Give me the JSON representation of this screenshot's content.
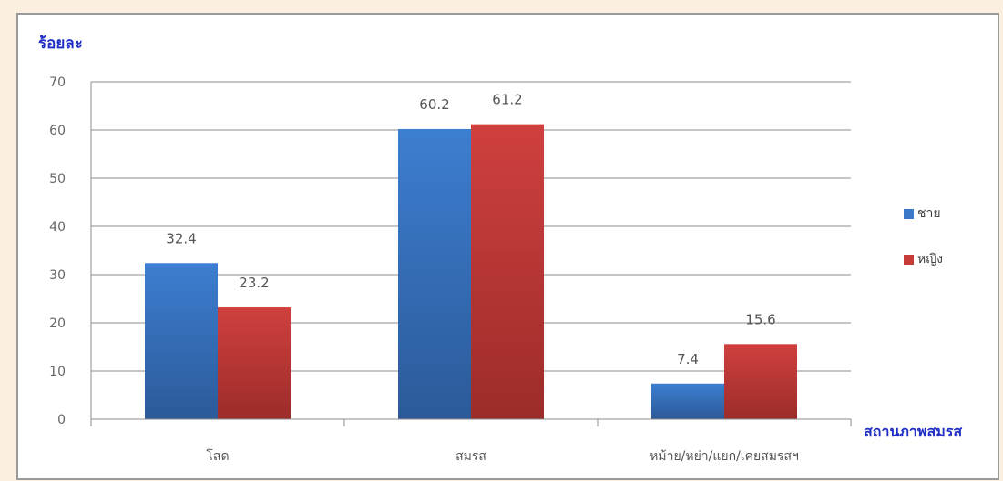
{
  "chart_data": {
    "type": "bar",
    "ylabel": "ร้อยละ",
    "xlabel": "สถานภาพสมรส",
    "categories": [
      "โสด",
      "สมรส",
      "หม้าย/หย่า/แยก/เคยสมรสฯ"
    ],
    "series": [
      {
        "name": "ชาย",
        "values": [
          32.4,
          60.2,
          7.4
        ],
        "color": "#3b79c8"
      },
      {
        "name": "หญิง",
        "values": [
          23.2,
          61.2,
          15.6
        ],
        "color": "#c63a38"
      }
    ],
    "ylim": [
      0,
      70
    ],
    "yticks": [
      0,
      10,
      20,
      30,
      40,
      50,
      60,
      70
    ],
    "grid": true,
    "legend_position": "right"
  }
}
